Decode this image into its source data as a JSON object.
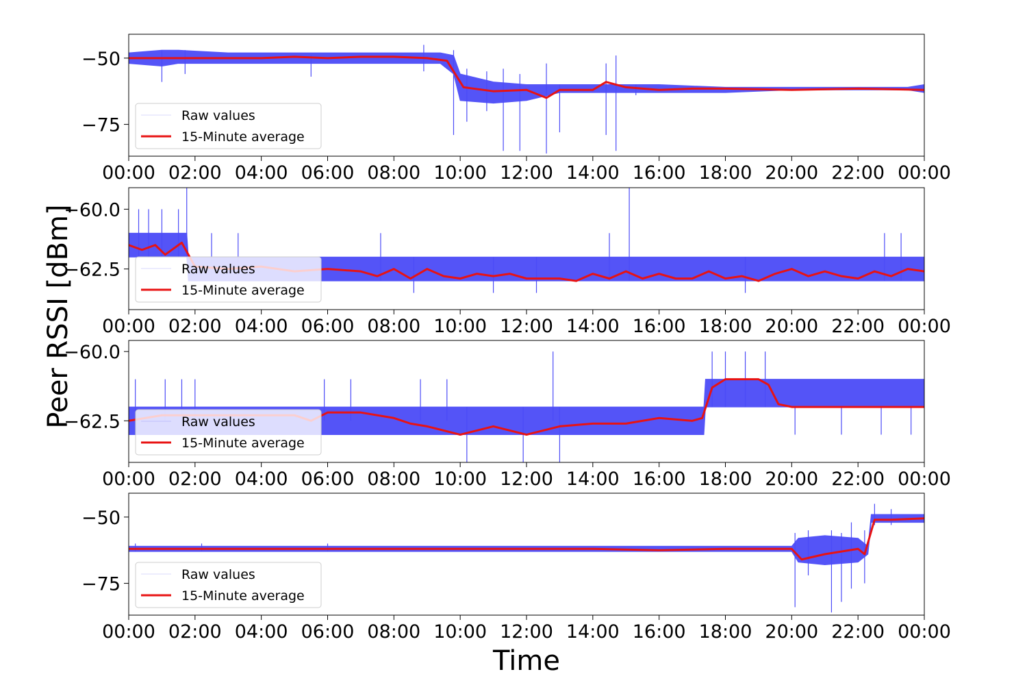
{
  "figure": {
    "ylabel": "Peer RSSI [dBm]",
    "xlabel": "Time"
  },
  "colors": {
    "raw": "#4b4bf7",
    "avg": "#e81313",
    "axis": "#000000"
  },
  "chart_data": [
    {
      "type": "line",
      "ylim": [
        -87,
        -41
      ],
      "yticks": [
        -50,
        -75
      ],
      "ytick_labels": [
        "−50",
        "−75"
      ],
      "x_ticks": [
        "00:00",
        "02:00",
        "04:00",
        "06:00",
        "08:00",
        "10:00",
        "12:00",
        "14:00",
        "16:00",
        "18:00",
        "20:00",
        "22:00",
        "00:00"
      ],
      "legend": {
        "placement": "lower-left",
        "entries": [
          "Raw values",
          "15-Minute average"
        ]
      },
      "series": [
        {
          "name": "Raw values",
          "band": [
            [
              0,
              -52,
              -48
            ],
            [
              1,
              -53,
              -47
            ],
            [
              1.5,
              -52,
              -47
            ],
            [
              3,
              -52,
              -48
            ],
            [
              5,
              -52,
              -48
            ],
            [
              7,
              -52,
              -48
            ],
            [
              9.4,
              -52,
              -48
            ],
            [
              9.8,
              -56,
              -49
            ],
            [
              10,
              -66,
              -56
            ],
            [
              11,
              -67,
              -59
            ],
            [
              12,
              -66,
              -60
            ],
            [
              13,
              -63,
              -60
            ],
            [
              14,
              -63,
              -60
            ],
            [
              15,
              -63,
              -60
            ],
            [
              16,
              -63,
              -60
            ],
            [
              18,
              -63,
              -61
            ],
            [
              20,
              -62,
              -61
            ],
            [
              23.5,
              -62,
              -61
            ],
            [
              24,
              -63,
              -60
            ]
          ],
          "spikes": [
            [
              1,
              -59,
              -47
            ],
            [
              1.7,
              -56,
              -47
            ],
            [
              5.5,
              -57,
              -49
            ],
            [
              8.9,
              -55,
              -45
            ],
            [
              9.8,
              -79,
              -47
            ],
            [
              10.2,
              -74,
              -54
            ],
            [
              10.8,
              -70,
              -55
            ],
            [
              11.3,
              -85,
              -54
            ],
            [
              11.8,
              -85,
              -56
            ],
            [
              12.6,
              -86,
              -52
            ],
            [
              13,
              -78,
              -60
            ],
            [
              14.4,
              -79,
              -52
            ],
            [
              14.7,
              -85,
              -49
            ],
            [
              15.3,
              -64,
              -60
            ]
          ]
        },
        {
          "name": "15-Minute average",
          "points": [
            [
              0,
              -50
            ],
            [
              1,
              -50
            ],
            [
              2,
              -50
            ],
            [
              3,
              -50
            ],
            [
              4,
              -50
            ],
            [
              5,
              -49.5
            ],
            [
              6,
              -50
            ],
            [
              7,
              -49.5
            ],
            [
              8,
              -49.5
            ],
            [
              9,
              -50
            ],
            [
              9.6,
              -51
            ],
            [
              9.9,
              -57
            ],
            [
              10.1,
              -61
            ],
            [
              11,
              -62.5
            ],
            [
              12,
              -62
            ],
            [
              12.6,
              -65
            ],
            [
              13,
              -62
            ],
            [
              14,
              -62
            ],
            [
              14.4,
              -59
            ],
            [
              15,
              -61
            ],
            [
              16,
              -62
            ],
            [
              17,
              -61.5
            ],
            [
              18,
              -61.5
            ],
            [
              20,
              -62
            ],
            [
              22,
              -61.5
            ],
            [
              24,
              -62
            ]
          ]
        }
      ]
    },
    {
      "type": "line",
      "ylim": [
        -64.2,
        -59.1
      ],
      "yticks": [
        -60,
        -62.5
      ],
      "ytick_labels": [
        "−60.0",
        "−62.5"
      ],
      "x_ticks": [
        "00:00",
        "02:00",
        "04:00",
        "06:00",
        "08:00",
        "10:00",
        "12:00",
        "14:00",
        "16:00",
        "18:00",
        "20:00",
        "22:00",
        "00:00"
      ],
      "legend": {
        "placement": "lower-left",
        "entries": [
          "Raw values",
          "15-Minute average"
        ]
      },
      "series": [
        {
          "name": "Raw values",
          "band": [
            [
              0,
              -62,
              -61
            ],
            [
              1.75,
              -62,
              -61
            ],
            [
              1.8,
              -63,
              -62
            ],
            [
              24,
              -63,
              -62
            ]
          ],
          "spikes": [
            [
              0.3,
              -62,
              -60
            ],
            [
              0.6,
              -62,
              -60
            ],
            [
              1,
              -62,
              -60
            ],
            [
              1.5,
              -62,
              -60
            ],
            [
              1.75,
              -62,
              -59
            ],
            [
              2.5,
              -63,
              -61
            ],
            [
              3.3,
              -63,
              -61
            ],
            [
              7.6,
              -63,
              -61
            ],
            [
              8.6,
              -63.5,
              -62
            ],
            [
              11,
              -63.5,
              -62
            ],
            [
              12.3,
              -63.5,
              -62
            ],
            [
              14.5,
              -63,
              -61
            ],
            [
              15.1,
              -63,
              -59
            ],
            [
              18.6,
              -63.5,
              -62
            ],
            [
              22.8,
              -63,
              -61
            ],
            [
              23.3,
              -63,
              -61
            ]
          ]
        },
        {
          "name": "15-Minute average",
          "points": [
            [
              0,
              -61.5
            ],
            [
              0.4,
              -61.7
            ],
            [
              0.8,
              -61.5
            ],
            [
              1.1,
              -61.9
            ],
            [
              1.6,
              -61.4
            ],
            [
              2,
              -62.4
            ],
            [
              3,
              -62.5
            ],
            [
              4,
              -62.4
            ],
            [
              5,
              -62.6
            ],
            [
              6,
              -62.5
            ],
            [
              7,
              -62.6
            ],
            [
              7.5,
              -62.8
            ],
            [
              8,
              -62.5
            ],
            [
              8.5,
              -62.9
            ],
            [
              9,
              -62.5
            ],
            [
              9.5,
              -62.8
            ],
            [
              10,
              -62.9
            ],
            [
              10.5,
              -62.7
            ],
            [
              11,
              -62.8
            ],
            [
              11.5,
              -62.7
            ],
            [
              12,
              -62.9
            ],
            [
              13,
              -62.9
            ],
            [
              13.5,
              -63
            ],
            [
              14,
              -62.7
            ],
            [
              14.5,
              -62.9
            ],
            [
              15,
              -62.6
            ],
            [
              15.5,
              -62.9
            ],
            [
              16,
              -62.7
            ],
            [
              16.5,
              -62.9
            ],
            [
              17,
              -62.9
            ],
            [
              17.5,
              -62.6
            ],
            [
              18,
              -62.9
            ],
            [
              18.5,
              -62.8
            ],
            [
              19,
              -63
            ],
            [
              19.5,
              -62.7
            ],
            [
              20,
              -62.5
            ],
            [
              20.5,
              -62.8
            ],
            [
              21,
              -62.6
            ],
            [
              21.5,
              -62.8
            ],
            [
              22,
              -62.9
            ],
            [
              22.5,
              -62.6
            ],
            [
              23,
              -62.8
            ],
            [
              23.5,
              -62.5
            ],
            [
              24,
              -62.6
            ]
          ]
        }
      ]
    },
    {
      "type": "line",
      "ylim": [
        -64,
        -59.6
      ],
      "yticks": [
        -60,
        -62.5
      ],
      "ytick_labels": [
        "−60.0",
        "−62.5"
      ],
      "x_ticks": [
        "00:00",
        "02:00",
        "04:00",
        "06:00",
        "08:00",
        "10:00",
        "12:00",
        "14:00",
        "16:00",
        "18:00",
        "20:00",
        "22:00",
        "00:00"
      ],
      "legend": {
        "placement": "lower-left",
        "entries": [
          "Raw values",
          "15-Minute average"
        ]
      },
      "series": [
        {
          "name": "Raw values",
          "band": [
            [
              0,
              -63,
              -62
            ],
            [
              17.35,
              -63,
              -62
            ],
            [
              17.4,
              -62,
              -61
            ],
            [
              24,
              -62,
              -61
            ]
          ],
          "spikes": [
            [
              0.2,
              -62.5,
              -61
            ],
            [
              1.1,
              -62.5,
              -61
            ],
            [
              1.6,
              -62.5,
              -61
            ],
            [
              2,
              -62.5,
              -61
            ],
            [
              5.9,
              -62.5,
              -61
            ],
            [
              6.7,
              -62.5,
              -61
            ],
            [
              8.8,
              -62.5,
              -61
            ],
            [
              9.6,
              -62.5,
              -61
            ],
            [
              10.2,
              -64,
              -62
            ],
            [
              11.9,
              -64,
              -62
            ],
            [
              12.8,
              -62.5,
              -60
            ],
            [
              13,
              -64,
              -62
            ],
            [
              17.6,
              -62,
              -60
            ],
            [
              18,
              -62,
              -60
            ],
            [
              18.6,
              -62,
              -60
            ],
            [
              19.2,
              -62,
              -60
            ],
            [
              20.1,
              -63,
              -62
            ],
            [
              21.5,
              -63,
              -62
            ],
            [
              22.7,
              -63,
              -62
            ],
            [
              23.6,
              -63,
              -62
            ]
          ]
        },
        {
          "name": "15-Minute average",
          "points": [
            [
              0,
              -62.5
            ],
            [
              1,
              -62.3
            ],
            [
              2,
              -62.3
            ],
            [
              3,
              -62.3
            ],
            [
              4,
              -62.3
            ],
            [
              5,
              -62.3
            ],
            [
              5.5,
              -62.5
            ],
            [
              6,
              -62.2
            ],
            [
              7,
              -62.2
            ],
            [
              8,
              -62.4
            ],
            [
              8.5,
              -62.6
            ],
            [
              9,
              -62.7
            ],
            [
              10,
              -63
            ],
            [
              11,
              -62.7
            ],
            [
              12,
              -63
            ],
            [
              13,
              -62.7
            ],
            [
              14,
              -62.6
            ],
            [
              15,
              -62.6
            ],
            [
              16,
              -62.4
            ],
            [
              17,
              -62.5
            ],
            [
              17.3,
              -62.4
            ],
            [
              17.6,
              -61.3
            ],
            [
              18,
              -61
            ],
            [
              19,
              -61
            ],
            [
              19.3,
              -61.2
            ],
            [
              19.6,
              -61.9
            ],
            [
              20,
              -62
            ],
            [
              24,
              -62
            ]
          ]
        }
      ]
    },
    {
      "type": "line",
      "ylim": [
        -87,
        -41
      ],
      "yticks": [
        -50,
        -75
      ],
      "ytick_labels": [
        "−50",
        "−75"
      ],
      "x_ticks": [
        "00:00",
        "02:00",
        "04:00",
        "06:00",
        "08:00",
        "10:00",
        "12:00",
        "14:00",
        "16:00",
        "18:00",
        "20:00",
        "22:00",
        "00:00"
      ],
      "legend": {
        "placement": "lower-left",
        "entries": [
          "Raw values",
          "15-Minute average"
        ]
      },
      "series": [
        {
          "name": "Raw values",
          "band": [
            [
              0,
              -63,
              -61
            ],
            [
              20,
              -63,
              -61
            ],
            [
              20.2,
              -67,
              -58
            ],
            [
              21,
              -68,
              -57
            ],
            [
              22,
              -67,
              -58
            ],
            [
              22.3,
              -64,
              -61
            ],
            [
              22.4,
              -52,
              -49
            ],
            [
              24,
              -52,
              -49
            ]
          ],
          "spikes": [
            [
              0.2,
              -63,
              -60
            ],
            [
              2.2,
              -63,
              -60
            ],
            [
              6,
              -63,
              -60
            ],
            [
              20.1,
              -84,
              -56
            ],
            [
              20.5,
              -72,
              -55
            ],
            [
              21.2,
              -86,
              -55
            ],
            [
              21.5,
              -82,
              -56
            ],
            [
              21.8,
              -77,
              -52
            ],
            [
              22.2,
              -75,
              -55
            ],
            [
              22.5,
              -53,
              -45
            ],
            [
              23,
              -53,
              -47
            ]
          ]
        },
        {
          "name": "15-Minute average",
          "points": [
            [
              0,
              -62
            ],
            [
              2,
              -62
            ],
            [
              4,
              -62
            ],
            [
              6,
              -62
            ],
            [
              8,
              -62
            ],
            [
              10,
              -62
            ],
            [
              12,
              -62
            ],
            [
              14,
              -62
            ],
            [
              16,
              -62.5
            ],
            [
              18,
              -62
            ],
            [
              20,
              -62
            ],
            [
              20.3,
              -66
            ],
            [
              21,
              -64
            ],
            [
              21.5,
              -63
            ],
            [
              22,
              -62
            ],
            [
              22.2,
              -64
            ],
            [
              22.5,
              -51
            ],
            [
              23,
              -51
            ],
            [
              24,
              -50.5
            ]
          ]
        }
      ]
    }
  ]
}
